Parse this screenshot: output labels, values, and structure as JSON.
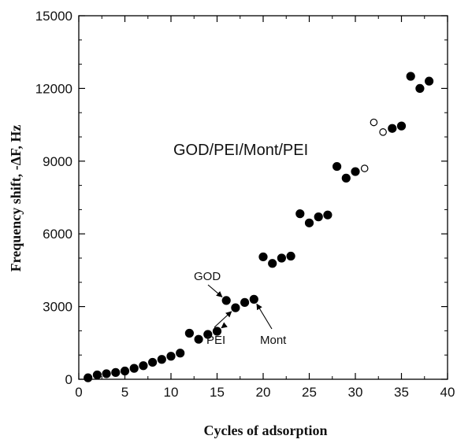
{
  "chart_data": {
    "type": "scatter",
    "title": "",
    "xlabel": "Cycles of adsorption",
    "ylabel": "Frequency shift, -ΔF, Hz",
    "xlim": [
      0,
      40
    ],
    "ylim": [
      0,
      15000
    ],
    "x_ticks": [
      0,
      5,
      10,
      15,
      20,
      25,
      30,
      35,
      40
    ],
    "y_ticks": [
      0,
      3000,
      6000,
      9000,
      12000,
      15000
    ],
    "x_tick_labels": [
      "0",
      "5",
      "10",
      "15",
      "20",
      "25",
      "30",
      "35",
      "40"
    ],
    "y_tick_labels": [
      "0",
      "3000",
      "6000",
      "9000",
      "12000",
      "15000"
    ],
    "grid": false,
    "legend": "none",
    "series": [
      {
        "marker": "filled-circle",
        "color": "#000000",
        "points": [
          [
            1,
            60
          ],
          [
            2,
            180
          ],
          [
            3,
            230
          ],
          [
            4,
            280
          ],
          [
            5,
            340
          ],
          [
            6,
            450
          ],
          [
            7,
            560
          ],
          [
            8,
            700
          ],
          [
            9,
            820
          ],
          [
            10,
            950
          ],
          [
            11,
            1080
          ],
          [
            12,
            1900
          ],
          [
            13,
            1650
          ],
          [
            14,
            1850
          ],
          [
            15,
            1980
          ],
          [
            16,
            3250
          ],
          [
            17,
            2950
          ],
          [
            18,
            3170
          ],
          [
            19,
            3300
          ],
          [
            20,
            5050
          ],
          [
            21,
            4780
          ],
          [
            22,
            5000
          ],
          [
            23,
            5080
          ],
          [
            24,
            6830
          ],
          [
            25,
            6450
          ],
          [
            26,
            6700
          ],
          [
            27,
            6780
          ],
          [
            28,
            8780
          ],
          [
            29,
            8300
          ],
          [
            30,
            8570
          ],
          [
            34,
            10350
          ],
          [
            35,
            10450
          ],
          [
            36,
            12500
          ],
          [
            37,
            12000
          ],
          [
            38,
            12300
          ]
        ]
      },
      {
        "marker": "open-circle",
        "color": "#000000",
        "points": [
          [
            31,
            8700
          ],
          [
            32,
            10600
          ],
          [
            33,
            10200
          ]
        ]
      }
    ],
    "annotations": {
      "main_label": "GOD/PEI/Mont/PEI",
      "god_label": "GOD",
      "pei_label": "PEI",
      "mont_label": "Mont"
    }
  }
}
